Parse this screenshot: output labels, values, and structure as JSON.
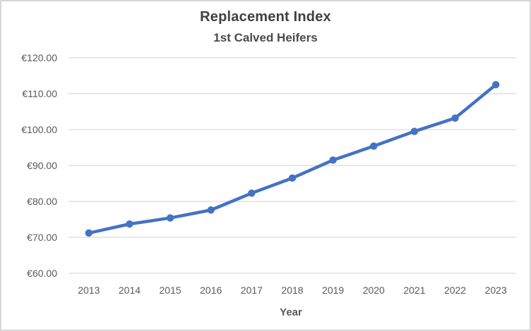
{
  "chart": {
    "title": "Replacement Index",
    "subtitle": "1st Calved Heifers"
  },
  "chart_data": {
    "type": "line",
    "title": "Replacement Index",
    "subtitle": "1st Calved Heifers",
    "categories": [
      "2013",
      "2014",
      "2015",
      "2016",
      "2017",
      "2018",
      "2019",
      "2020",
      "2021",
      "2022",
      "2023"
    ],
    "series": [
      {
        "name": "Replacement Index 1st Calved Heifers",
        "values": [
          71.2,
          73.7,
          75.4,
          77.6,
          82.3,
          86.5,
          91.5,
          95.4,
          99.5,
          103.2,
          112.5
        ]
      }
    ],
    "xlabel": "Year",
    "ylabel": "",
    "ylim": [
      60,
      120
    ],
    "ytick_step": 10,
    "ytick_prefix": "€",
    "ytick_decimals": 2,
    "grid": "horizontal",
    "legend": "none",
    "marker": "circle"
  },
  "colors": {
    "line": "#4472C4",
    "marker": "#4472C4",
    "gridline": "#D9D9D9",
    "tick_label": "#595959",
    "title_text": "#404040",
    "frame_border": "#D6D6D6",
    "background": "#FFFFFF"
  }
}
